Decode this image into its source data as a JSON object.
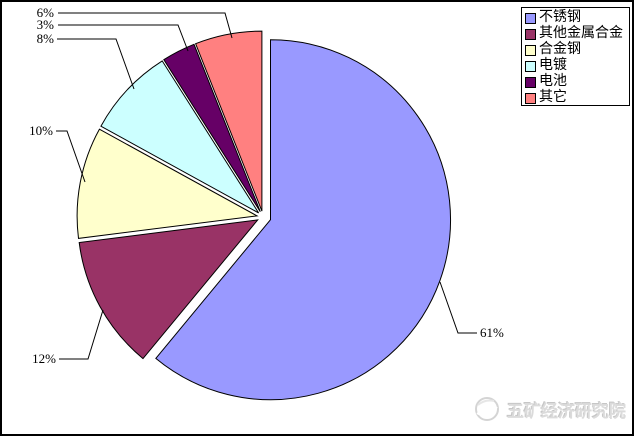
{
  "chart": {
    "background_color": "#FFFFFF",
    "border_color": "#000000"
  },
  "chart_data": {
    "type": "pie",
    "title": "",
    "exploded": true,
    "start_angle_deg": 0,
    "direction": "clockwise",
    "legend_position": "top-right",
    "slices": [
      {
        "label": "不锈钢",
        "value": 61,
        "percent_label": "61%",
        "color": "#9999FF"
      },
      {
        "label": "其他金属合金",
        "value": 12,
        "percent_label": "12%",
        "color": "#993366"
      },
      {
        "label": "合金钢",
        "value": 10,
        "percent_label": "10%",
        "color": "#FFFFCC"
      },
      {
        "label": "电镀",
        "value": 8,
        "percent_label": "8%",
        "color": "#CCFFFF"
      },
      {
        "label": "电池",
        "value": 3,
        "percent_label": "3%",
        "color": "#660066"
      },
      {
        "label": "其它",
        "value": 6,
        "percent_label": "6%",
        "color": "#FF8080"
      }
    ]
  },
  "watermark": {
    "text": "五矿经济研究院",
    "icon": "globe-icon",
    "color": "#DBDBDB"
  }
}
